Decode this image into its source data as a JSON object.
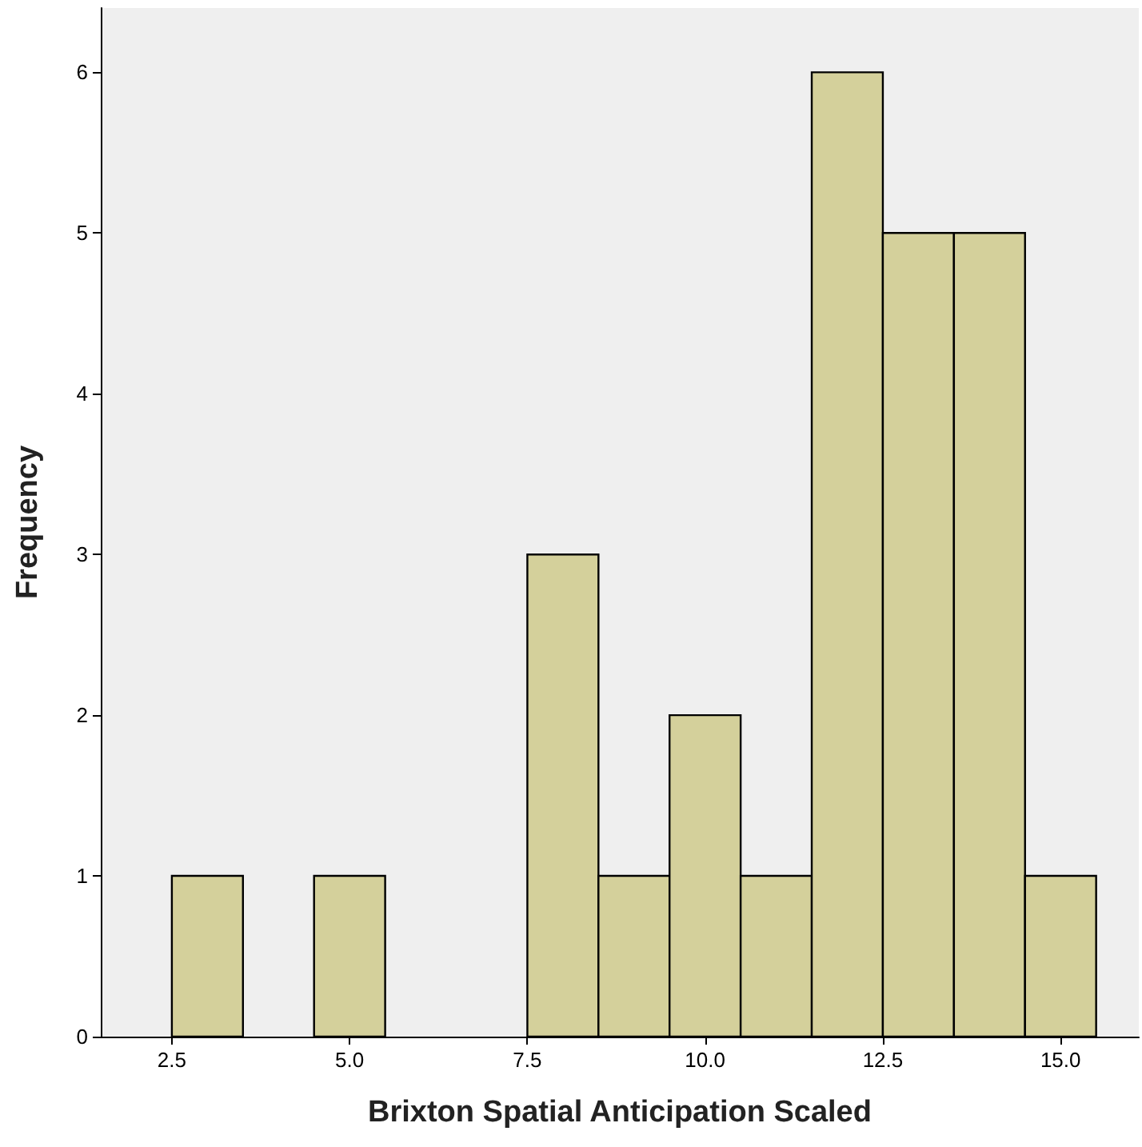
{
  "chart_data": {
    "type": "histogram",
    "xlabel": "Brixton Spatial Anticipation Scaled",
    "ylabel": "Frequency",
    "bins": [
      2.5,
      3.5,
      4.5,
      5.5,
      6.5,
      7.5,
      8.5,
      9.5,
      10.5,
      11.5,
      12.5,
      13.5,
      14.5,
      15.5
    ],
    "values": [
      1,
      0,
      1,
      0,
      0,
      3,
      1,
      2,
      1,
      6,
      5,
      5,
      1
    ],
    "color": "#d4d09b",
    "xlim": [
      1.5,
      16.1
    ],
    "xticks": [
      2.5,
      {
        "value": 5,
        "label": "5.0"
      },
      7.5,
      {
        "value": 10,
        "label": "10.0"
      },
      12.5,
      {
        "value": 15,
        "label": "15.0"
      }
    ],
    "ylim": [
      0,
      6.4
    ],
    "yticks": [
      0,
      1,
      2,
      3,
      4,
      5,
      6
    ],
    "grid": false
  }
}
